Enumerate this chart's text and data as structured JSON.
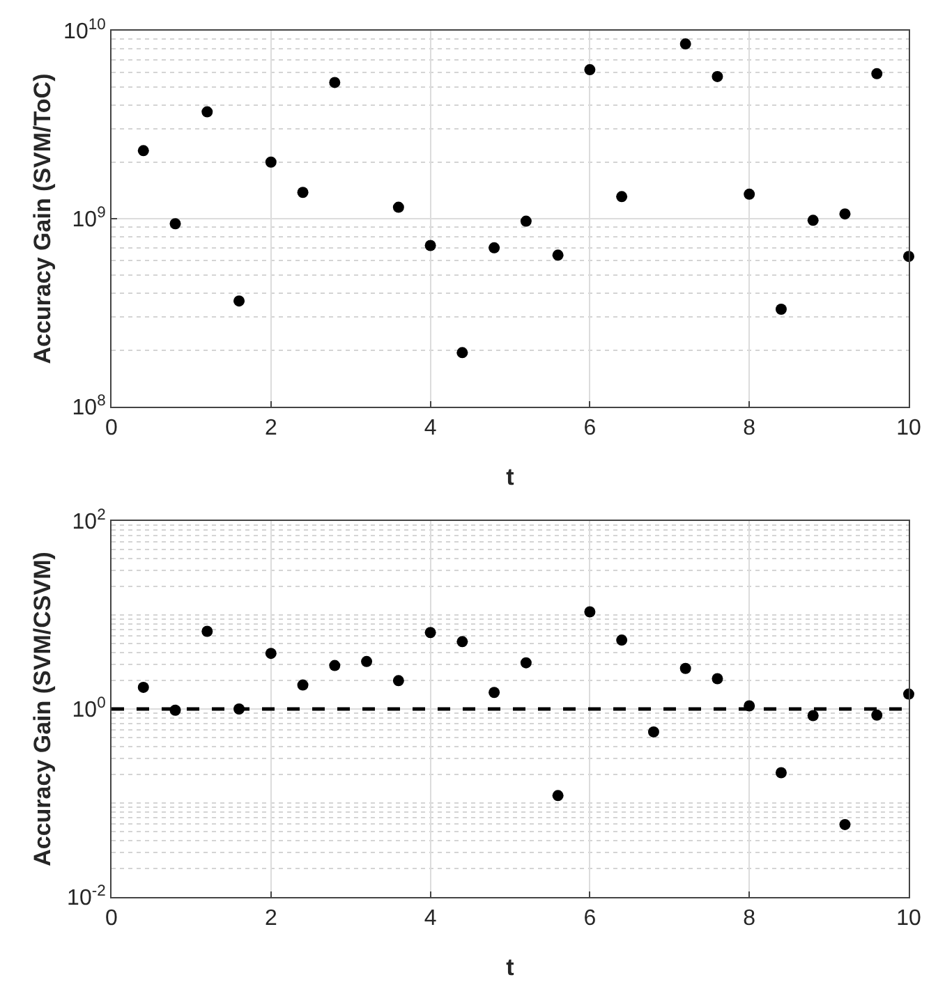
{
  "chart_data": [
    {
      "type": "scatter",
      "xlabel": "t",
      "ylabel": "Accuracy Gain (SVM/ToC)",
      "log": "y",
      "grid": true,
      "marker": "circle",
      "x": [
        0.4,
        0.8,
        1.2,
        1.6,
        2.0,
        2.4,
        2.8,
        3.6,
        4.0,
        4.4,
        4.8,
        5.2,
        5.6,
        6.0,
        6.4,
        7.2,
        7.6,
        8.0,
        8.4,
        8.8,
        9.2,
        9.6,
        10.0
      ],
      "series": [
        {
          "color": "#000000",
          "values": [
            2300000000.0,
            940000000.0,
            3700000000.0,
            365000000.0,
            2000000000.0,
            1380000000.0,
            5300000000.0,
            1150000000.0,
            720000000.0,
            194000000.0,
            700000000.0,
            970000000.0,
            640000000.0,
            6200000000.0,
            1310000000.0,
            8500000000.0,
            5700000000.0,
            1350000000.0,
            330000000.0,
            980000000.0,
            1060000000.0,
            5900000000.0,
            630000000.0
          ]
        }
      ],
      "xlim": [
        0,
        10
      ],
      "xticks": [
        0,
        2,
        4,
        6,
        8,
        10
      ],
      "ylim": [
        100000000.0,
        10000000000.0
      ],
      "yticks": [
        {
          "value": 100000000.0,
          "label": "10$^{8}$"
        },
        {
          "value": 1000000000.0,
          "label": "10$^{9}$"
        },
        {
          "value": 10000000000.0,
          "label": "10$^{10}$"
        }
      ]
    },
    {
      "type": "scatter",
      "xlabel": "t",
      "ylabel": "Accuracy Gain (SVM/CSVM)",
      "log": "y",
      "grid": true,
      "marker": "circle",
      "x": [
        0.4,
        0.8,
        1.2,
        1.6,
        2.0,
        2.4,
        2.8,
        3.2,
        3.6,
        4.0,
        4.4,
        4.8,
        5.2,
        5.6,
        6.0,
        6.4,
        6.8,
        7.2,
        7.6,
        8.0,
        8.4,
        8.8,
        9.2,
        9.6,
        10.0
      ],
      "series": [
        {
          "color": "#000000",
          "values": [
            1.7,
            0.97,
            6.7,
            1.0,
            3.9,
            1.8,
            2.9,
            3.2,
            2.0,
            6.5,
            5.2,
            1.5,
            3.1,
            0.12,
            10.8,
            5.4,
            0.57,
            2.7,
            2.1,
            1.08,
            0.21,
            0.85,
            0.059,
            0.86,
            1.44
          ]
        }
      ],
      "xlim": [
        0,
        10
      ],
      "xticks": [
        0,
        2,
        4,
        6,
        8,
        10
      ],
      "ylim": [
        0.01,
        100
      ],
      "yticks": [
        {
          "value": 0.01,
          "label": "10$^{-2}$"
        },
        {
          "value": 1,
          "label": "10$^{0}$"
        },
        {
          "value": 100,
          "label": "10$^{2}$"
        }
      ],
      "ref_lines": [
        {
          "axis": "y",
          "value": 1,
          "color": "#000000",
          "line_style": "dashed"
        }
      ]
    }
  ]
}
